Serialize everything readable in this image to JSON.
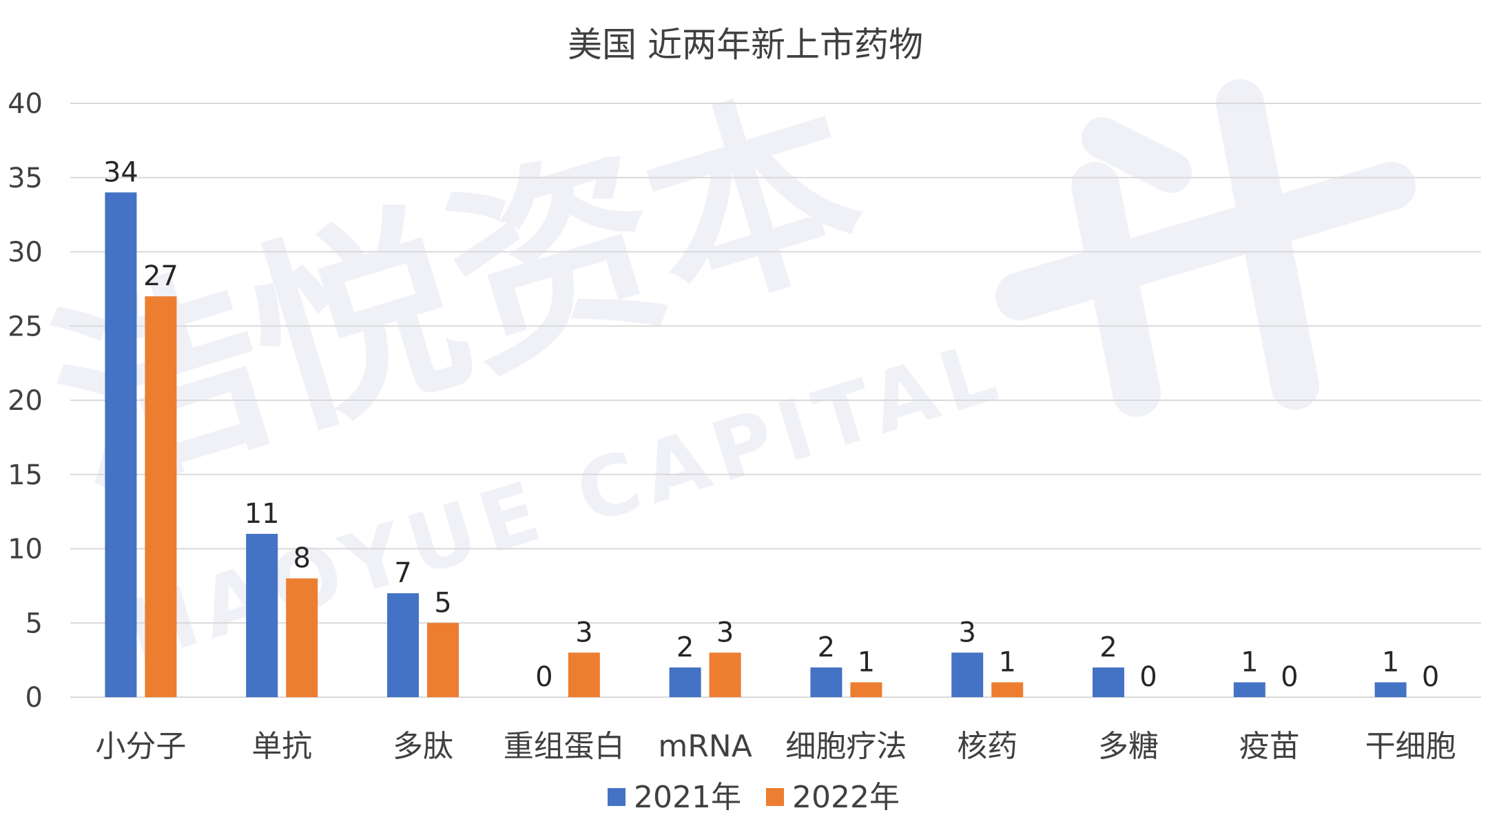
{
  "chart_data": {
    "type": "bar",
    "title": "美国 近两年新上市药物",
    "xlabel": "",
    "ylabel": "",
    "ylim": [
      0,
      40
    ],
    "yticks": [
      0,
      5,
      10,
      15,
      20,
      25,
      30,
      35,
      40
    ],
    "grid": true,
    "legend_position": "bottom",
    "categories": [
      "小分子",
      "单抗",
      "多肽",
      "重组蛋白",
      "mRNA",
      "细胞疗法",
      "核药",
      "多糖",
      "疫苗",
      "干细胞"
    ],
    "series": [
      {
        "name": "2021年",
        "color": "#4472c4",
        "values": [
          34,
          11,
          7,
          0,
          2,
          2,
          3,
          2,
          1,
          1
        ]
      },
      {
        "name": "2022年",
        "color": "#ed7d31",
        "values": [
          27,
          8,
          5,
          3,
          3,
          1,
          1,
          0,
          0,
          0
        ]
      }
    ]
  },
  "watermark": {
    "cn": "浩悦资本",
    "en": "HAOYUE CAPITAL"
  }
}
